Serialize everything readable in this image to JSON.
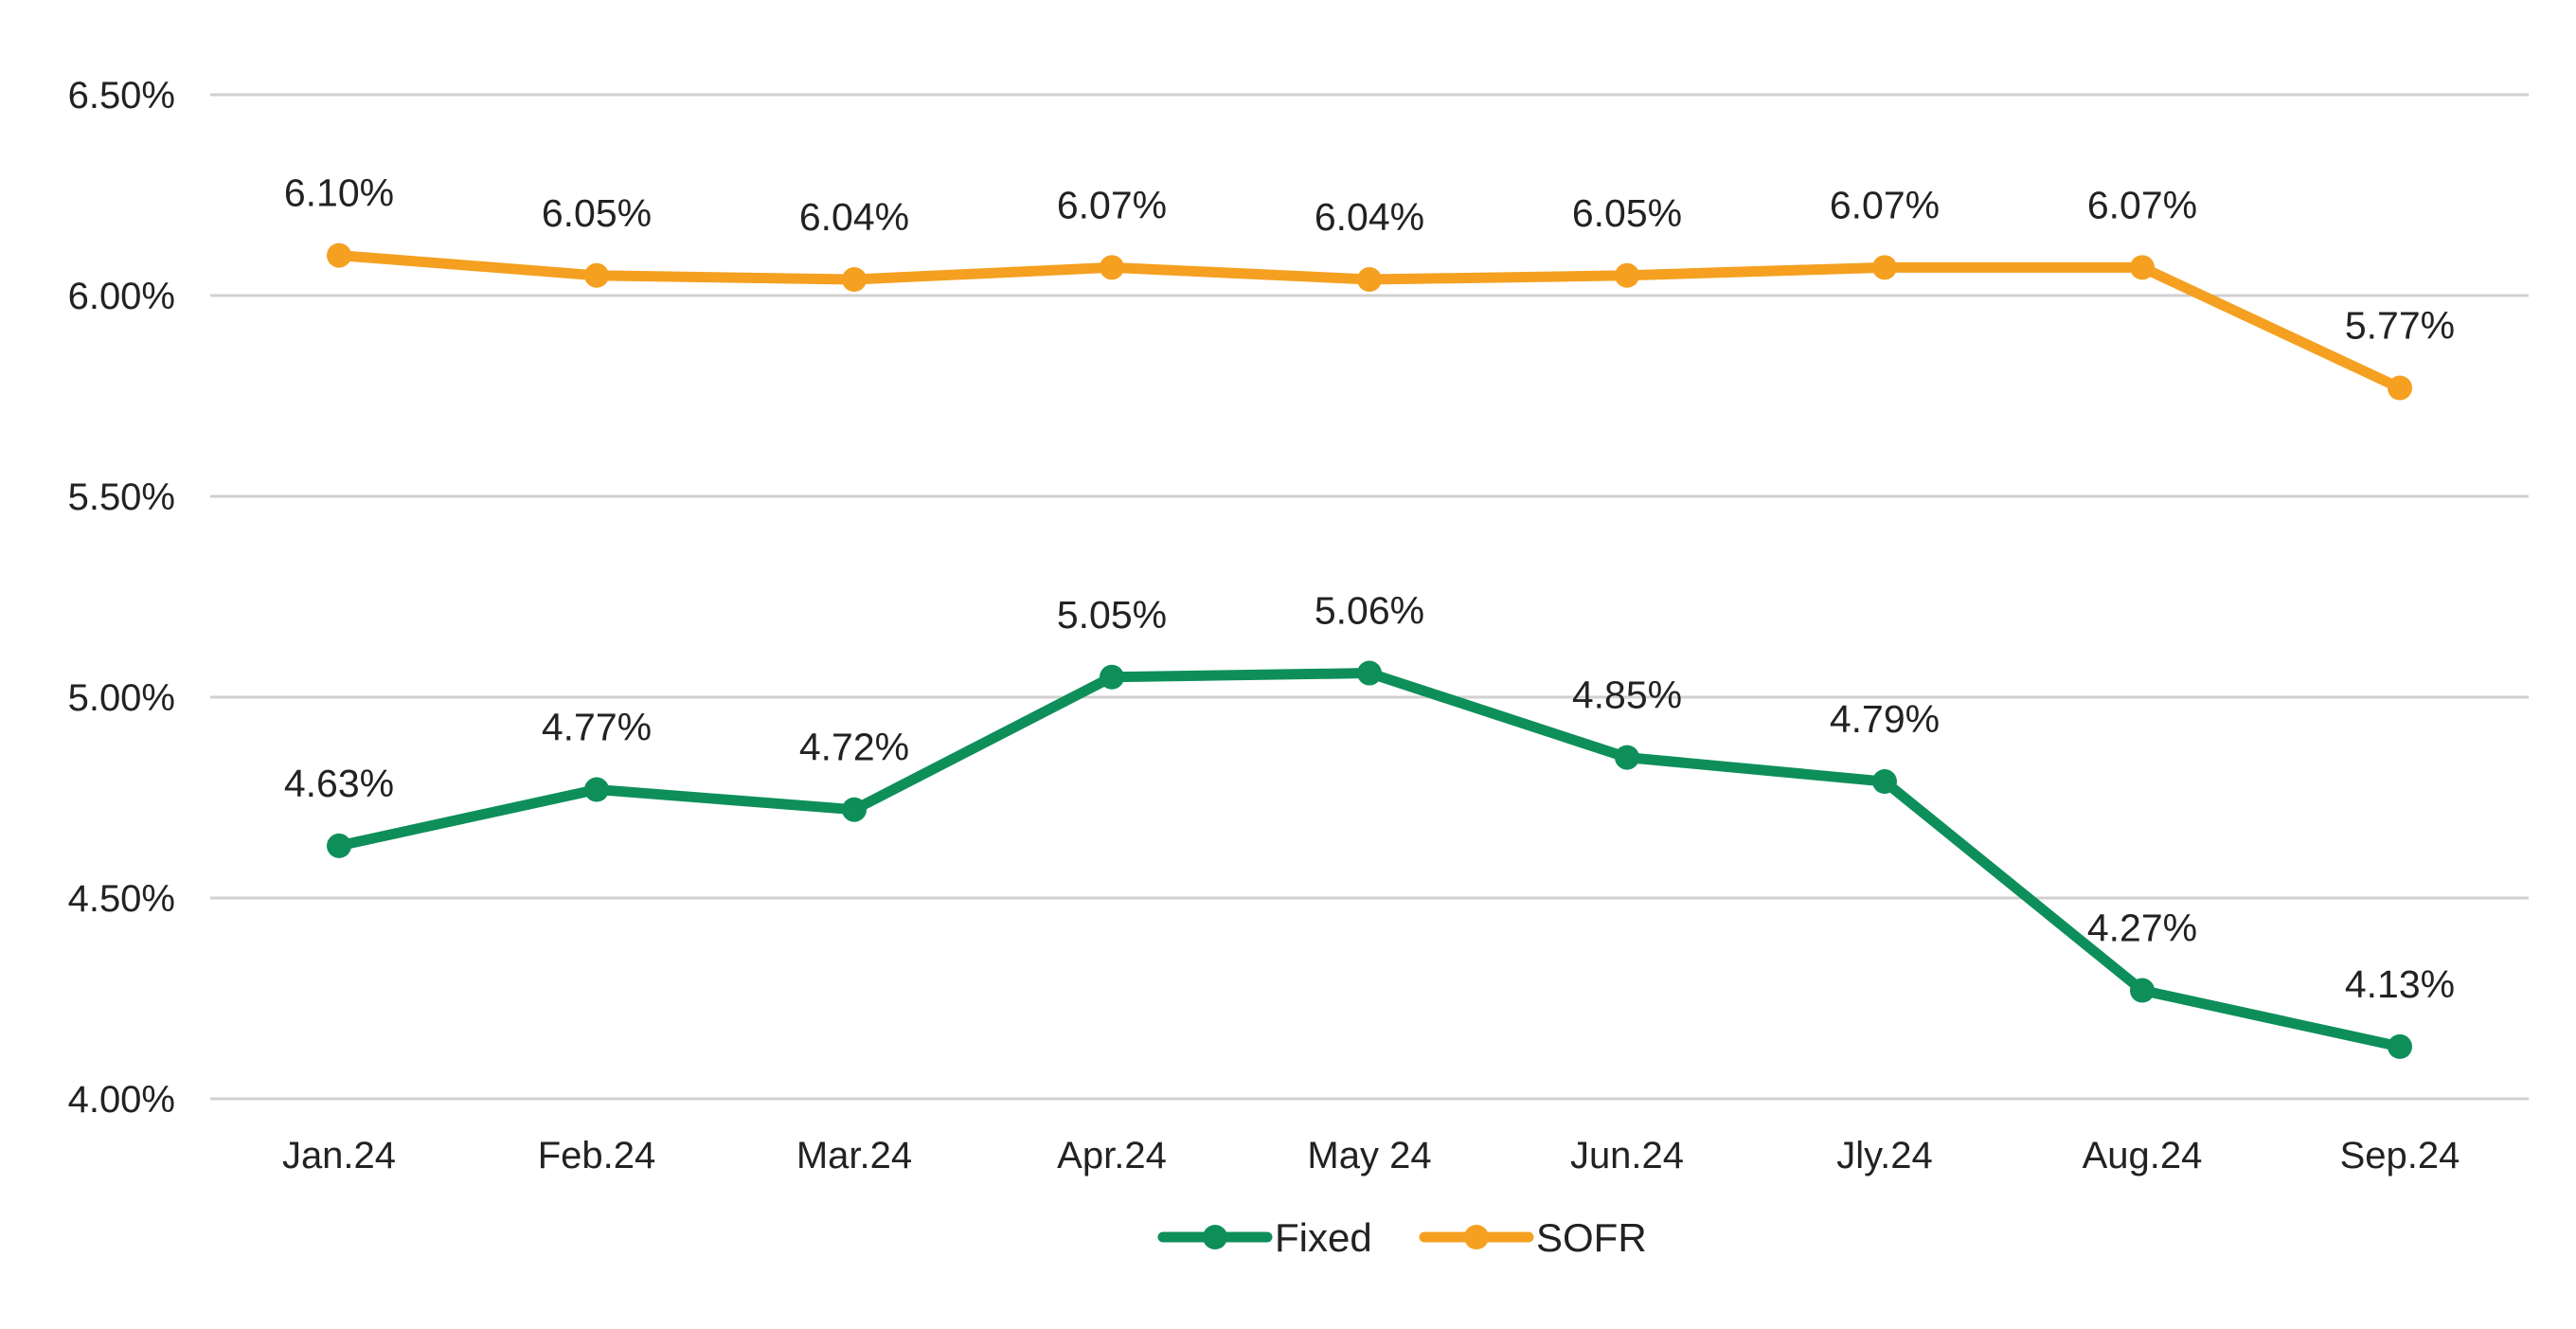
{
  "chart_data": {
    "type": "line",
    "title": "",
    "xlabel": "",
    "ylabel": "",
    "categories": [
      "Jan.24",
      "Feb.24",
      "Mar.24",
      "Apr.24",
      "May 24",
      "Jun.24",
      "Jly.24",
      "Aug.24",
      "Sep.24"
    ],
    "ylim": [
      4.0,
      6.5
    ],
    "yticks": [
      4.0,
      4.5,
      5.0,
      5.5,
      6.0,
      6.5
    ],
    "ytick_labels": [
      "4.00%",
      "4.50%",
      "5.00%",
      "5.50%",
      "6.00%",
      "6.50%"
    ],
    "grid": true,
    "legend_position": "bottom",
    "series": [
      {
        "name": "Fixed",
        "color": "#0e8f5a",
        "values": [
          4.63,
          4.77,
          4.72,
          5.05,
          5.06,
          4.85,
          4.79,
          4.27,
          4.13
        ],
        "labels": [
          "4.63%",
          "4.77%",
          "4.72%",
          "5.05%",
          "5.06%",
          "4.85%",
          "4.79%",
          "4.27%",
          "4.13%"
        ]
      },
      {
        "name": "SOFR",
        "color": "#f5a020",
        "values": [
          6.1,
          6.05,
          6.04,
          6.07,
          6.04,
          6.05,
          6.07,
          6.07,
          5.77
        ],
        "labels": [
          "6.10%",
          "6.05%",
          "6.04%",
          "6.07%",
          "6.04%",
          "6.05%",
          "6.07%",
          "6.07%",
          "5.77%"
        ]
      }
    ]
  }
}
